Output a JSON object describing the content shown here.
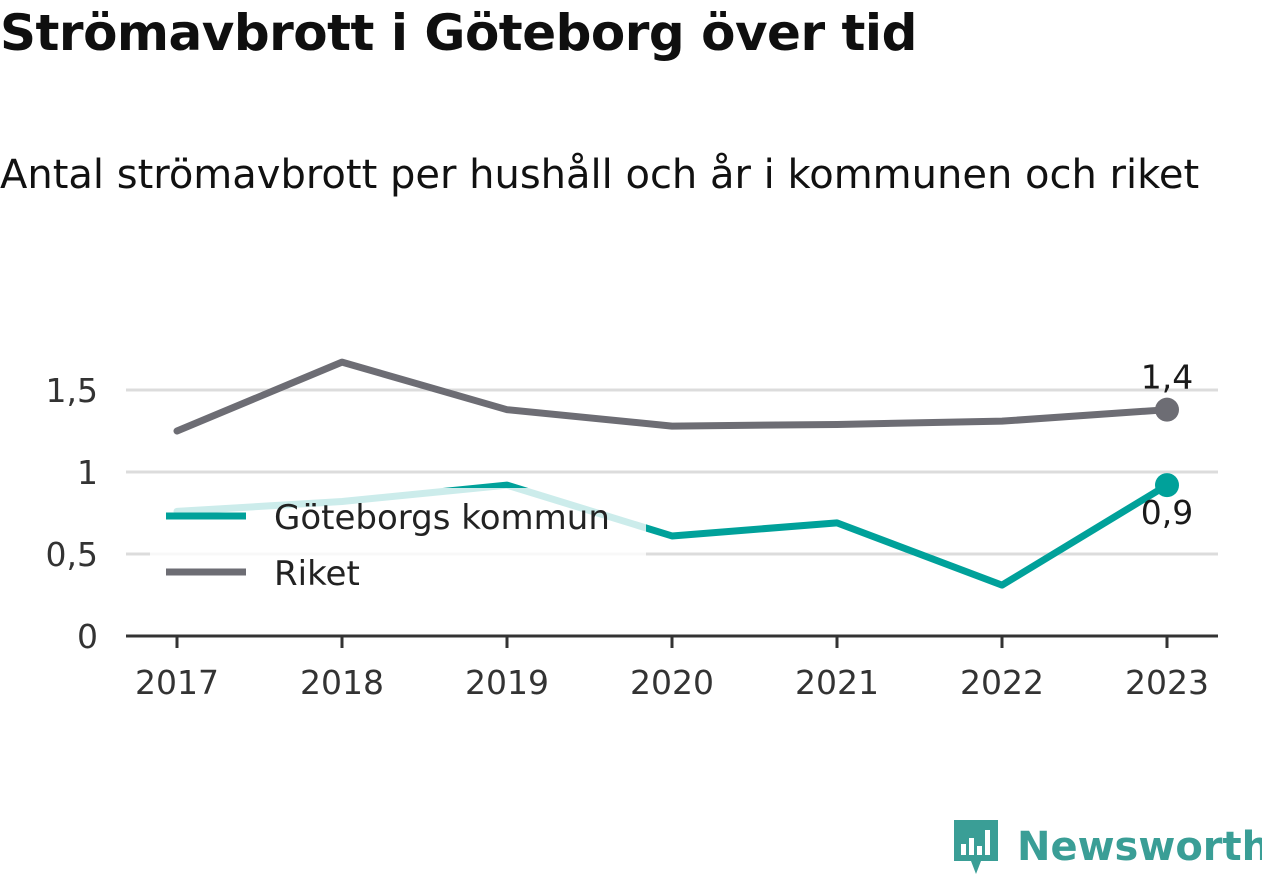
{
  "title": "Strömavbrott i Göteborg över tid",
  "subtitle": "Antal strömavbrott per hushåll och år i kommunen och riket",
  "brand": {
    "name": "Newsworthy",
    "icon": "bar-chart-badge-icon",
    "color": "#3a9e96"
  },
  "chart_data": {
    "type": "line",
    "categories": [
      "2017",
      "2018",
      "2019",
      "2020",
      "2021",
      "2022",
      "2023"
    ],
    "series": [
      {
        "name": "Göteborgs kommun",
        "color": "#00a19a",
        "values": [
          0.76,
          0.82,
          0.92,
          0.61,
          0.69,
          0.31,
          0.92
        ],
        "end_label": "0,9"
      },
      {
        "name": "Riket",
        "color": "#6d6d74",
        "values": [
          1.25,
          1.67,
          1.38,
          1.28,
          1.29,
          1.31,
          1.38
        ],
        "end_label": "1,4"
      }
    ],
    "yticks": [
      {
        "value": 0,
        "label": "0"
      },
      {
        "value": 0.5,
        "label": "0,5"
      },
      {
        "value": 1,
        "label": "1"
      },
      {
        "value": 1.5,
        "label": "1,5"
      }
    ],
    "ylim": [
      0,
      1.75
    ],
    "grid": true,
    "legend_position": "center-left",
    "xlabel": "",
    "ylabel": ""
  }
}
